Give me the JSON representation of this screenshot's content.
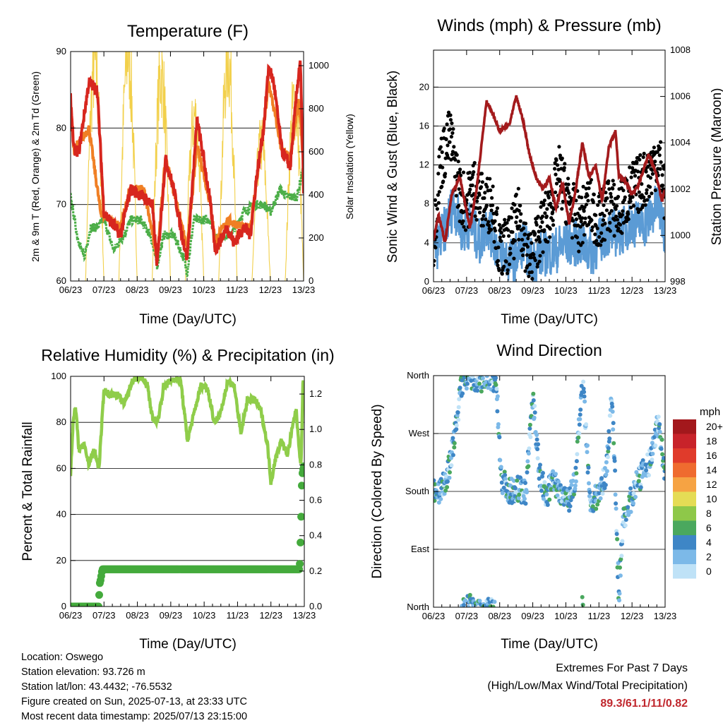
{
  "x_ticks": [
    "06/23",
    "07/23",
    "08/23",
    "09/23",
    "10/23",
    "11/23",
    "12/23",
    "13/23"
  ],
  "temperature": {
    "title": "Temperature (F)",
    "xlabel": "Time (Day/UTC)",
    "ylabel_left": "2m & 9m T (Red, Orange) & 2m Td (Green)",
    "ylabel_right": "Solar Insolation (Yellow)",
    "left_ticks": [
      "60",
      "70",
      "80",
      "90"
    ],
    "right_ticks": [
      "0",
      "200",
      "400",
      "600",
      "800",
      "1000"
    ]
  },
  "winds": {
    "title": "Winds (mph) & Pressure (mb)",
    "xlabel": "Time (Day/UTC)",
    "ylabel_left": "Sonic Wind & Gust (Blue, Black)",
    "ylabel_right": "Station Pressure (Maroon)",
    "left_ticks": [
      "0",
      "4",
      "8",
      "12",
      "16",
      "20"
    ],
    "right_ticks": [
      "998",
      "1000",
      "1002",
      "1004",
      "1006",
      "1008"
    ]
  },
  "humidity": {
    "title": "Relative Humidity (%) & Precipitation (in)",
    "xlabel": "Time (Day/UTC)",
    "ylabel_left": "Percent & Total Rainfall",
    "left_ticks": [
      "0",
      "20",
      "40",
      "60",
      "80",
      "100"
    ],
    "right_ticks": [
      "0.0",
      "0.2",
      "0.4",
      "0.6",
      "0.8",
      "1.0",
      "1.2"
    ]
  },
  "direction": {
    "title": "Wind Direction",
    "xlabel": "Time (Day/UTC)",
    "ylabel_left": "Direction (Colored By Speed)",
    "left_ticks": [
      "North",
      "East",
      "South",
      "West",
      "North"
    ],
    "legend_title": "mph",
    "legend_labels": [
      "20+",
      "18",
      "16",
      "14",
      "12",
      "10",
      "8",
      "6",
      "4",
      "2",
      "0"
    ],
    "legend_colors": [
      "#a3181c",
      "#c8232a",
      "#e03b2b",
      "#ef6b2f",
      "#f6a343",
      "#e5dc55",
      "#8ec849",
      "#4aa85e",
      "#3e86c6",
      "#7cb9e8",
      "#bfe2f7"
    ]
  },
  "info": {
    "location": "Location: Oswego",
    "elevation": "Station elevation: 93.726 m",
    "latlon": "Station lat/lon: 43.4432; -76.5532",
    "created": "Figure created on Sun, 2025-07-13, at 23:33 UTC",
    "recent": "Most recent data timestamp: 2025/07/13 23:15:00"
  },
  "extremes": {
    "line1": "Extremes For Past 7 Days",
    "line2": "(High/Low/Max Wind/Total Precipitation)",
    "values": "89.3/61.1/11/0.82"
  },
  "colors": {
    "temp_2m": "#d7261e",
    "temp_9m": "#f07f24",
    "dewpoint": "#4cae48",
    "solar": "#f2d04b",
    "wind": "#5b9bd5",
    "gust": "#000000",
    "pressure": "#a31a1c",
    "rh": "#8fcd4a",
    "precip": "#44aa3c"
  },
  "chart_data": [
    {
      "type": "line",
      "title": "Temperature (F)",
      "xlabel": "Time (Day/UTC)",
      "ylabel": "2m & 9m T (Red, Orange) & 2m Td (Green)",
      "y2label": "Solar Insolation (Yellow)",
      "x": [
        "06/23",
        "07/23",
        "08/23",
        "09/23",
        "10/23",
        "11/23",
        "12/23",
        "13/23"
      ],
      "ylim": [
        60,
        90
      ],
      "y2lim": [
        0,
        1100
      ],
      "series": [
        {
          "name": "2m T (Red)",
          "axis": "left",
          "values": [
            84,
            68,
            70,
            66,
            75,
            66,
            85,
            73
          ]
        },
        {
          "name": "9m T (Orange)",
          "axis": "left",
          "values": [
            83,
            68,
            71,
            66,
            74,
            66,
            82,
            73
          ]
        },
        {
          "name": "2m Td (Green)",
          "axis": "left",
          "values": [
            72,
            66,
            67,
            63,
            68,
            66,
            70,
            75
          ]
        },
        {
          "name": "Solar Insolation (Yellow)",
          "axis": "right",
          "values": [
            0,
            0,
            0,
            0,
            0,
            0,
            0,
            0
          ]
        }
      ]
    },
    {
      "type": "line",
      "title": "Winds (mph) & Pressure (mb)",
      "xlabel": "Time (Day/UTC)",
      "ylabel": "Sonic Wind & Gust (Blue, Black)",
      "y2label": "Station Pressure (Maroon)",
      "x": [
        "06/23",
        "07/23",
        "08/23",
        "09/23",
        "10/23",
        "11/23",
        "12/23",
        "13/23"
      ],
      "ylim": [
        0,
        24
      ],
      "y2lim": [
        998,
        1008
      ],
      "series": [
        {
          "name": "Sonic Wind (Blue)",
          "axis": "left",
          "values": [
            3,
            6,
            3,
            2,
            4,
            4,
            5,
            6
          ]
        },
        {
          "name": "Gust (Black)",
          "axis": "left",
          "values": [
            4,
            11,
            4,
            4,
            9,
            6,
            9,
            9
          ]
        },
        {
          "name": "Station Pressure (Maroon)",
          "axis": "right",
          "values": [
            999.9,
            1000.1,
            1006.1,
            1004.5,
            1002.1,
            1002.7,
            1003.6,
            1002.2
          ]
        }
      ]
    },
    {
      "type": "line",
      "title": "Relative Humidity (%) & Precipitation (in)",
      "xlabel": "Time (Day/UTC)",
      "ylabel": "Percent & Total Rainfall",
      "x": [
        "06/23",
        "07/23",
        "08/23",
        "09/23",
        "10/23",
        "11/23",
        "12/23",
        "13/23"
      ],
      "ylim": [
        0,
        100
      ],
      "y2lim": [
        0,
        1.3
      ],
      "series": [
        {
          "name": "Relative Humidity",
          "axis": "left",
          "values": [
            60,
            93,
            99,
            98,
            90,
            96,
            60,
            92
          ]
        },
        {
          "name": "Total Rainfall",
          "axis": "right",
          "values": [
            0.0,
            0.21,
            0.21,
            0.21,
            0.21,
            0.21,
            0.21,
            0.82
          ]
        }
      ]
    },
    {
      "type": "scatter",
      "title": "Wind Direction",
      "xlabel": "Time (Day/UTC)",
      "ylabel": "Direction (Colored By Speed)",
      "x": [
        "06/23",
        "07/23",
        "08/23",
        "09/23",
        "10/23",
        "11/23",
        "12/23",
        "13/23"
      ],
      "y_categories": [
        "North",
        "East",
        "South",
        "West",
        "North"
      ],
      "colorbar": {
        "title": "mph",
        "labels": [
          "20+",
          "18",
          "16",
          "14",
          "12",
          "10",
          "8",
          "6",
          "4",
          "2",
          "0"
        ]
      }
    }
  ]
}
